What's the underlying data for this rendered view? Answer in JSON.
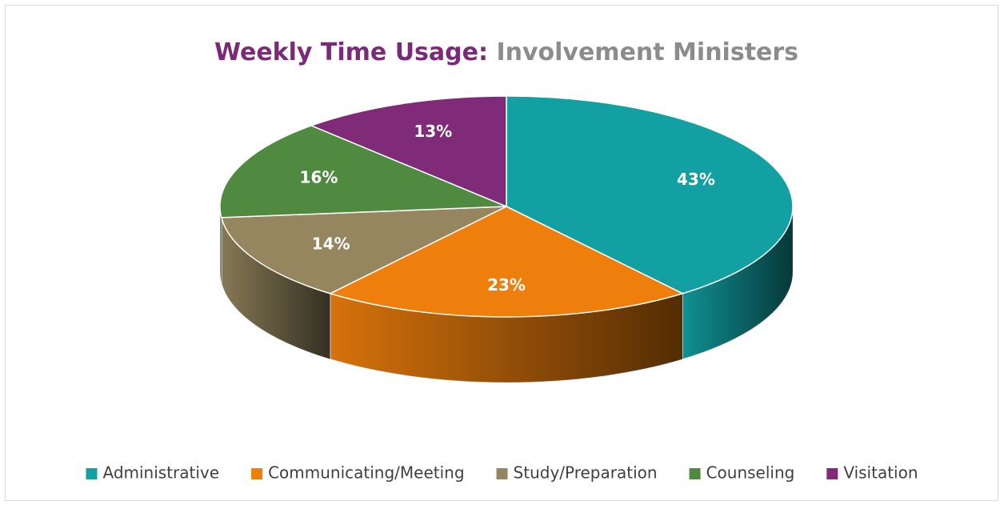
{
  "chart_data": {
    "type": "pie3d",
    "title": [
      "Weekly Time Usage:",
      "Involvement Ministers"
    ],
    "title_colors": [
      "#7b2a7a",
      "#8c8c8c"
    ],
    "categories": [
      "Administrative",
      "Communicating/Meeting",
      "Study/Preparation",
      "Counseling",
      "Visitation"
    ],
    "values": [
      43,
      23,
      14,
      16,
      13
    ],
    "value_labels": [
      "43%",
      "23%",
      "14%",
      "16%",
      "13%"
    ],
    "colors": [
      "#13a0a3",
      "#ee7f0c",
      "#95865f",
      "#4f8a40",
      "#7f2b78"
    ],
    "legend": "bottom"
  }
}
